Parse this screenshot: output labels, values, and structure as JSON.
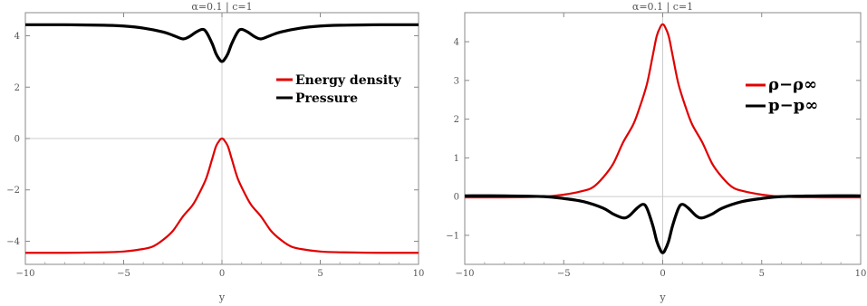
{
  "chart_data": [
    {
      "type": "line",
      "title": "α=0.1 | c=1",
      "xlabel": "y",
      "ylabel": "",
      "xlim": [
        -10,
        10
      ],
      "ylim": [
        -4.9,
        4.9
      ],
      "xticks": [
        -10,
        -5,
        0,
        5,
        10
      ],
      "xtick_labels": [
        "−10",
        "−5",
        "0",
        "5",
        "10"
      ],
      "yticks": [
        -4,
        -2,
        0,
        2,
        4
      ],
      "ytick_labels": [
        "−4",
        "−2",
        "0",
        "2",
        "4"
      ],
      "grid": "zero-lines",
      "legend": "right",
      "legend_entries": [
        {
          "label": "Energy density",
          "color": "#e00000"
        },
        {
          "label": "Pressure",
          "color": "#000000"
        }
      ],
      "series": [
        {
          "name": "Energy density",
          "color": "#e00000",
          "x": [
            -10,
            -8,
            -6,
            -5,
            -4,
            -3.5,
            -3,
            -2.5,
            -2,
            -1.5,
            -1.2,
            -0.8,
            -0.5,
            -0.3,
            -0.1,
            0,
            0.1,
            0.3,
            0.5,
            0.8,
            1.2,
            1.5,
            2,
            2.5,
            3,
            3.5,
            4,
            5,
            6,
            8,
            10
          ],
          "values": [
            -4.45,
            -4.45,
            -4.43,
            -4.4,
            -4.3,
            -4.2,
            -3.95,
            -3.6,
            -3.05,
            -2.6,
            -2.2,
            -1.55,
            -0.8,
            -0.3,
            -0.05,
            0.0,
            -0.05,
            -0.3,
            -0.8,
            -1.55,
            -2.2,
            -2.6,
            -3.05,
            -3.6,
            -3.95,
            -4.2,
            -4.3,
            -4.4,
            -4.43,
            -4.45,
            -4.45
          ]
        },
        {
          "name": "Pressure",
          "color": "#000000",
          "x": [
            -10,
            -8,
            -6,
            -5,
            -4,
            -3,
            -2.5,
            -2,
            -1.7,
            -1.3,
            -1,
            -0.8,
            -0.5,
            -0.3,
            -0.1,
            0,
            0.1,
            0.3,
            0.5,
            0.8,
            1,
            1.3,
            1.7,
            2,
            2.5,
            3,
            4,
            5,
            6,
            8,
            10
          ],
          "values": [
            4.43,
            4.43,
            4.41,
            4.38,
            4.3,
            4.15,
            4.02,
            3.88,
            3.95,
            4.15,
            4.25,
            4.15,
            3.7,
            3.3,
            3.05,
            3.0,
            3.05,
            3.3,
            3.7,
            4.15,
            4.25,
            4.15,
            3.95,
            3.88,
            4.02,
            4.15,
            4.3,
            4.38,
            4.41,
            4.43,
            4.43
          ]
        }
      ]
    },
    {
      "type": "line",
      "title": "α=0.1 | c=1",
      "xlabel": "y",
      "ylabel": "",
      "xlim": [
        -10,
        10
      ],
      "ylim": [
        -1.75,
        4.75
      ],
      "xticks": [
        -10,
        -5,
        0,
        5,
        10
      ],
      "xtick_labels": [
        "−10",
        "−5",
        "0",
        "5",
        "10"
      ],
      "yticks": [
        -1,
        0,
        1,
        2,
        3,
        4
      ],
      "ytick_labels": [
        "−1",
        "0",
        "1",
        "2",
        "3",
        "4"
      ],
      "grid": "zero-lines",
      "legend": "right",
      "legend_entries": [
        {
          "label": "ρ−ρ∞",
          "color": "#e00000"
        },
        {
          "label": "p−p∞",
          "color": "#000000"
        }
      ],
      "series": [
        {
          "name": "ρ−ρ∞",
          "color": "#e00000",
          "x": [
            -10,
            -8,
            -6,
            -5,
            -4,
            -3.5,
            -3,
            -2.5,
            -2,
            -1.5,
            -1.2,
            -0.8,
            -0.5,
            -0.3,
            -0.1,
            0,
            0.1,
            0.3,
            0.5,
            0.8,
            1.2,
            1.5,
            2,
            2.5,
            3,
            3.5,
            4,
            5,
            6,
            8,
            10
          ],
          "values": [
            -0.02,
            -0.02,
            0.0,
            0.05,
            0.15,
            0.25,
            0.5,
            0.85,
            1.4,
            1.85,
            2.25,
            2.9,
            3.65,
            4.15,
            4.4,
            4.45,
            4.4,
            4.15,
            3.65,
            2.9,
            2.25,
            1.85,
            1.4,
            0.85,
            0.5,
            0.25,
            0.15,
            0.05,
            0.0,
            -0.02,
            -0.02
          ]
        },
        {
          "name": "p−p∞",
          "color": "#000000",
          "x": [
            -10,
            -8,
            -6,
            -5,
            -4,
            -3,
            -2.5,
            -2,
            -1.7,
            -1.3,
            -1,
            -0.8,
            -0.5,
            -0.3,
            -0.1,
            0,
            0.1,
            0.3,
            0.5,
            0.8,
            1,
            1.3,
            1.7,
            2,
            2.5,
            3,
            4,
            5,
            6,
            8,
            10
          ],
          "values": [
            0.02,
            0.02,
            0.0,
            -0.05,
            -0.13,
            -0.3,
            -0.45,
            -0.55,
            -0.5,
            -0.3,
            -0.2,
            -0.3,
            -0.75,
            -1.15,
            -1.4,
            -1.45,
            -1.4,
            -1.15,
            -0.75,
            -0.3,
            -0.2,
            -0.3,
            -0.5,
            -0.55,
            -0.45,
            -0.3,
            -0.13,
            -0.05,
            0.0,
            0.02,
            0.02
          ]
        }
      ]
    }
  ]
}
